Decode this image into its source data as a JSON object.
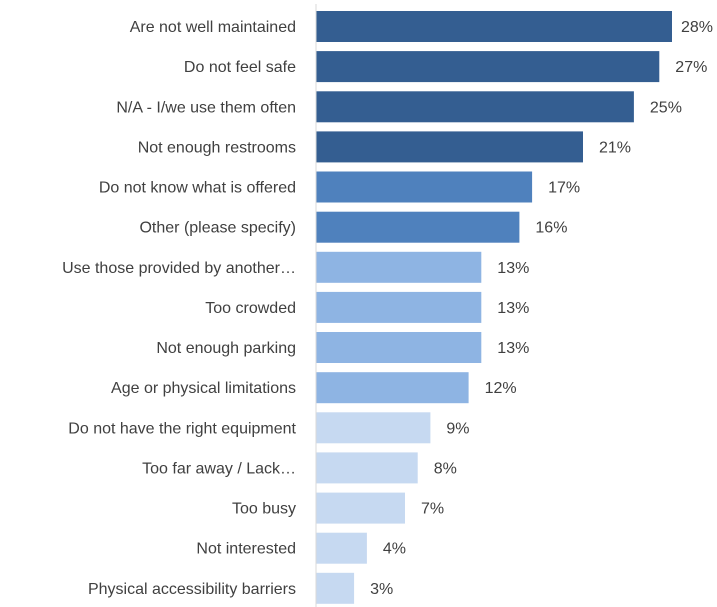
{
  "chart_data": {
    "type": "bar",
    "orientation": "horizontal",
    "categories": [
      "Are not well maintained",
      "Do not feel safe",
      "N/A - I/we use them often",
      "Not enough restrooms",
      "Do not know what is offered",
      "Other (please specify)",
      "Use those provided by another…",
      "Too crowded",
      "Not enough parking",
      "Age or physical limitations",
      "Do not have the right equipment",
      "Too far away / Lack…",
      "Too busy",
      "Not interested",
      "Physical accessibility barriers"
    ],
    "values": [
      28,
      27,
      25,
      21,
      17,
      16,
      13,
      13,
      13,
      12,
      9,
      8,
      7,
      4,
      3
    ],
    "value_labels": [
      "28%",
      "27%",
      "25%",
      "21%",
      "17%",
      "16%",
      "13%",
      "13%",
      "13%",
      "12%",
      "9%",
      "8%",
      "7%",
      "4%",
      "3%"
    ],
    "unit": "%",
    "xlim": [
      0,
      28
    ],
    "grid": false,
    "legend": "none",
    "bar_colors": [
      "#345e91",
      "#345e91",
      "#345e91",
      "#345e91",
      "#4f81bd",
      "#4f81bd",
      "#8eb4e3",
      "#8eb4e3",
      "#8eb4e3",
      "#8eb4e3",
      "#c6d9f1",
      "#c6d9f1",
      "#c6d9f1",
      "#c6d9f1",
      "#c6d9f1"
    ],
    "axis_color": "#d9d9d9",
    "text_color": "#404040"
  }
}
